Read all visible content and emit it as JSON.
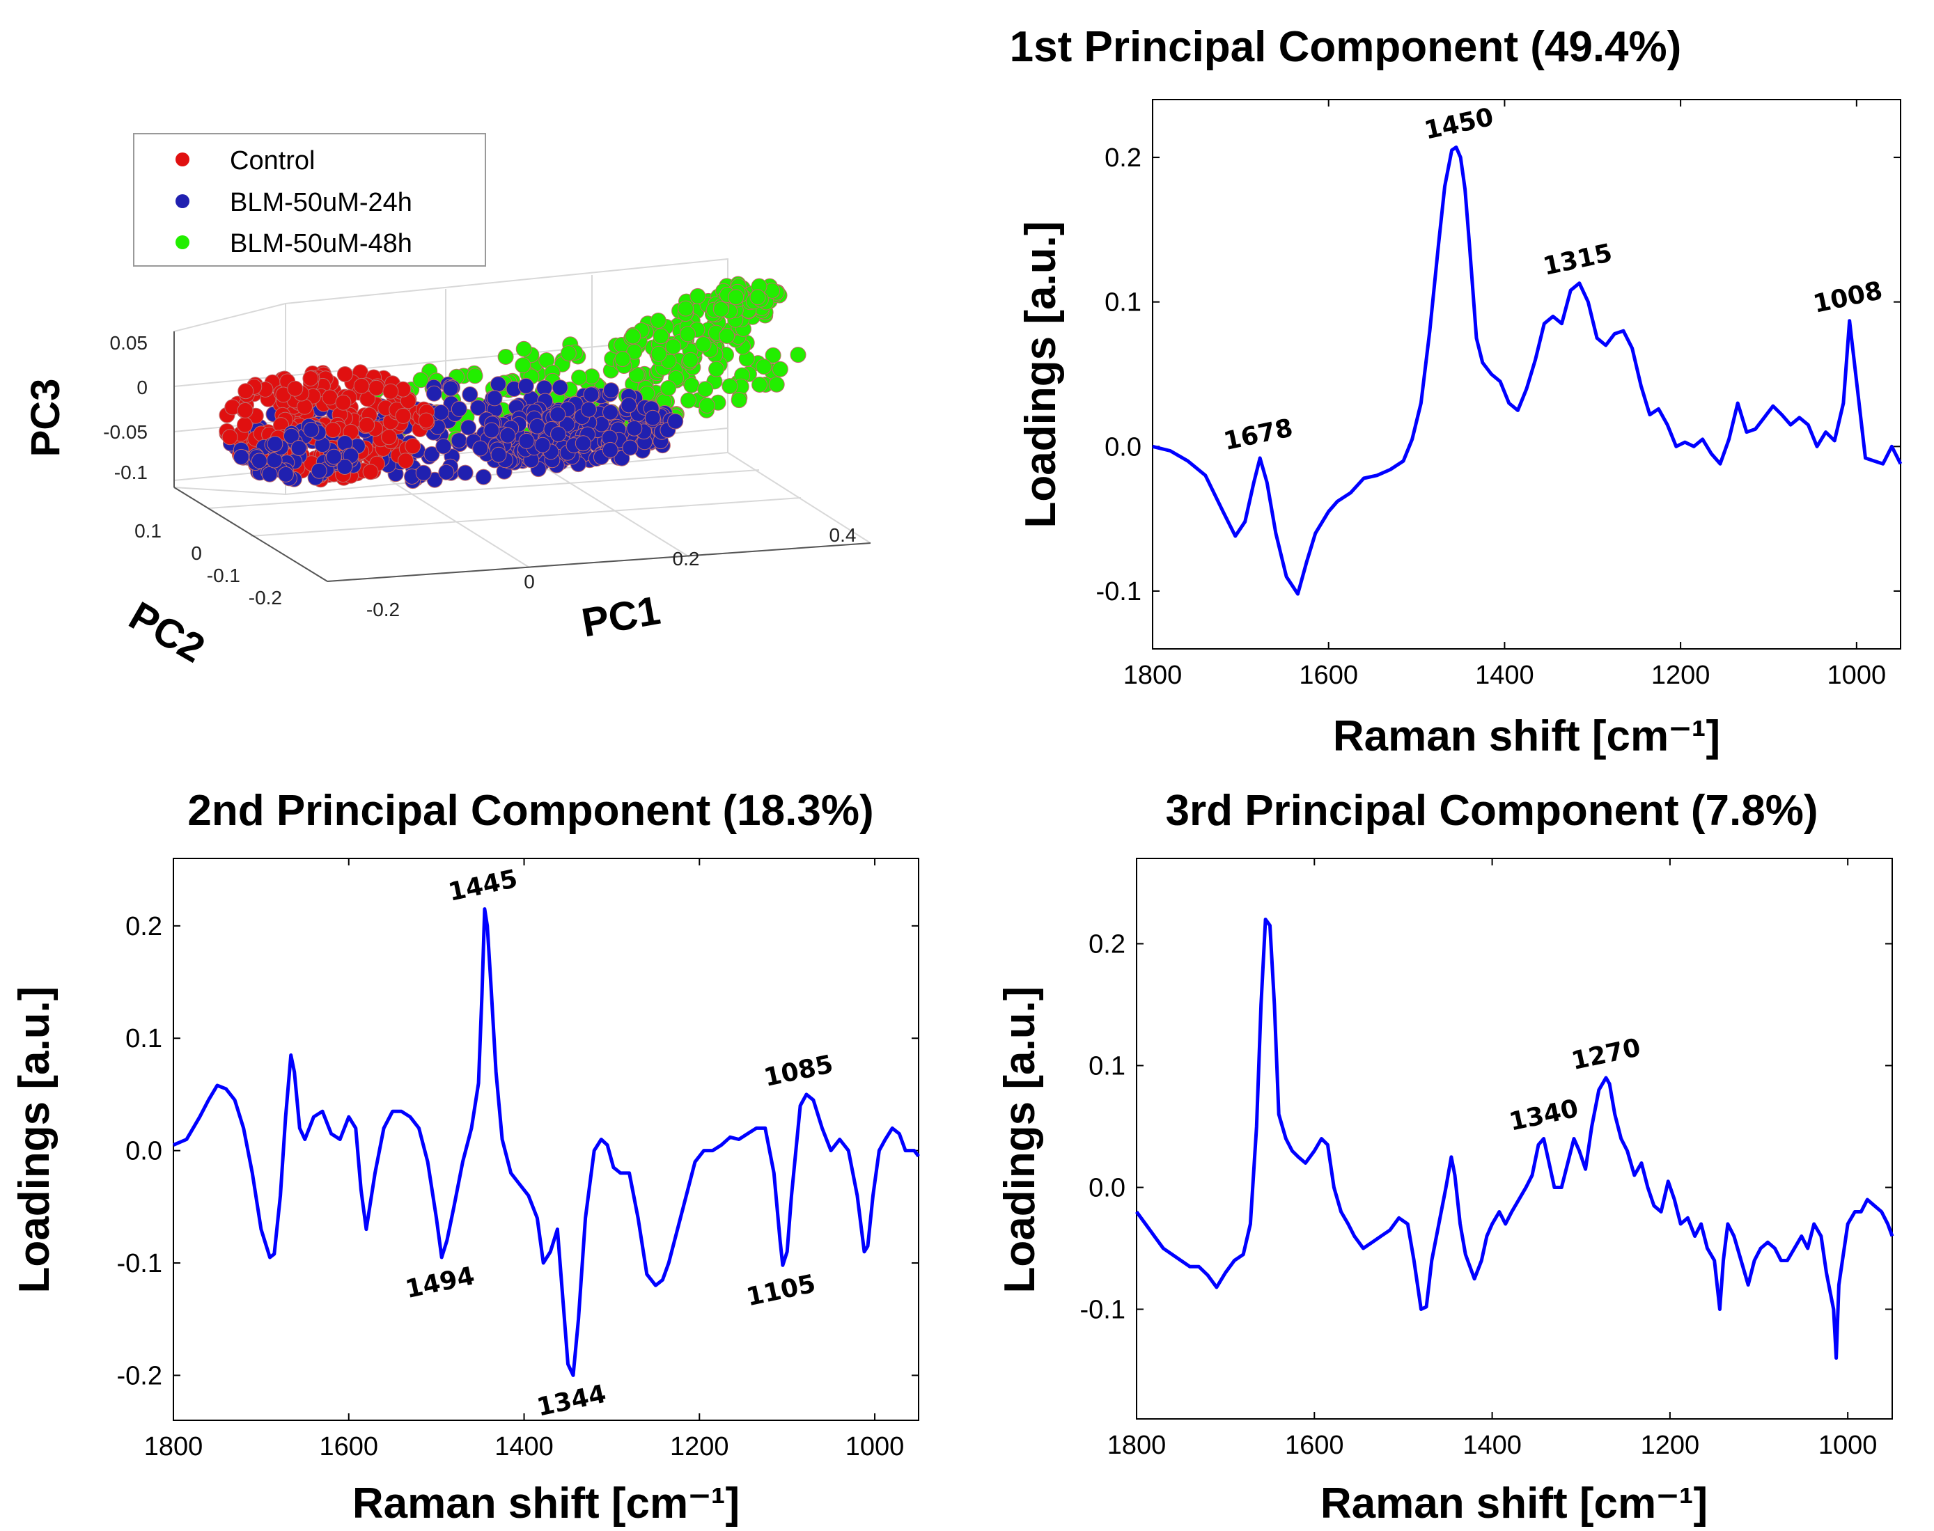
{
  "colors": {
    "line": "#0000ff",
    "control": "#e01010",
    "blm24": "#2020b0",
    "blm48": "#22ee00"
  },
  "chart_data": [
    {
      "id": "scatter3d",
      "type": "scatter",
      "legend": [
        "Control",
        "BLM-50uM-24h",
        "BLM-50uM-48h"
      ],
      "legend_position": "top-left",
      "xlabel": "PC1",
      "ylabel": "PC2",
      "zlabel": "PC3",
      "x_ticks": [
        "-0.2",
        "0",
        "0.2",
        "0.4"
      ],
      "y_ticks": [
        "0.1",
        "0",
        "-0.1",
        "-0.2"
      ],
      "z_ticks": [
        "0.05",
        "0",
        "-0.05",
        "-0.1"
      ],
      "groups": [
        {
          "name": "Control",
          "pc1_range": [
            -0.25,
            0.05
          ],
          "pc2_range": [
            -0.1,
            0.1
          ],
          "pc3_range": [
            -0.12,
            0.05
          ]
        },
        {
          "name": "BLM-50uM-24h",
          "pc1_range": [
            -0.25,
            0.3
          ],
          "pc2_range": [
            -0.1,
            0.1
          ],
          "pc3_range": [
            -0.12,
            0.02
          ]
        },
        {
          "name": "BLM-50uM-48h",
          "pc1_range": [
            0.0,
            0.5
          ],
          "pc2_range": [
            -0.05,
            0.1
          ],
          "pc3_range": [
            -0.02,
            0.06
          ]
        }
      ]
    },
    {
      "id": "pc1",
      "type": "line",
      "title": "1st Principal Component  (49.4%)",
      "xlabel": "Raman shift  [cm⁻¹]",
      "ylabel": "Loadings [a.u.]",
      "xlim": [
        1800,
        950
      ],
      "ylim": [
        -0.14,
        0.24
      ],
      "x_ticks": [
        1800,
        1600,
        1400,
        1200,
        1000
      ],
      "x_tick_labels": [
        "1800",
        "1600",
        "1400",
        "1200",
        "1000"
      ],
      "y_ticks": [
        -0.1,
        0.0,
        0.1,
        0.2
      ],
      "y_tick_labels": [
        "-0.1",
        "0.0",
        "0.1",
        "0.2"
      ],
      "x": [
        1800,
        1780,
        1760,
        1740,
        1720,
        1706,
        1695,
        1685,
        1678,
        1670,
        1660,
        1648,
        1635,
        1625,
        1615,
        1600,
        1590,
        1575,
        1560,
        1545,
        1530,
        1515,
        1505,
        1495,
        1485,
        1475,
        1468,
        1460,
        1455,
        1450,
        1445,
        1440,
        1432,
        1425,
        1415,
        1405,
        1395,
        1385,
        1375,
        1365,
        1355,
        1345,
        1335,
        1325,
        1315,
        1305,
        1295,
        1285,
        1275,
        1265,
        1255,
        1245,
        1235,
        1225,
        1215,
        1205,
        1195,
        1185,
        1175,
        1165,
        1155,
        1145,
        1135,
        1125,
        1115,
        1105,
        1095,
        1085,
        1075,
        1065,
        1055,
        1045,
        1035,
        1025,
        1015,
        1008,
        1000,
        990,
        980,
        970,
        960,
        950
      ],
      "y": [
        0.0,
        -0.003,
        -0.01,
        -0.02,
        -0.045,
        -0.062,
        -0.052,
        -0.025,
        -0.008,
        -0.025,
        -0.06,
        -0.09,
        -0.102,
        -0.08,
        -0.06,
        -0.045,
        -0.038,
        -0.032,
        -0.022,
        -0.02,
        -0.016,
        -0.01,
        0.005,
        0.03,
        0.08,
        0.14,
        0.18,
        0.205,
        0.207,
        0.2,
        0.178,
        0.14,
        0.075,
        0.058,
        0.05,
        0.045,
        0.03,
        0.025,
        0.04,
        0.06,
        0.085,
        0.09,
        0.085,
        0.108,
        0.113,
        0.1,
        0.075,
        0.07,
        0.078,
        0.08,
        0.068,
        0.042,
        0.022,
        0.026,
        0.015,
        0.0,
        0.003,
        0.0,
        0.005,
        -0.005,
        -0.012,
        0.005,
        0.03,
        0.01,
        0.012,
        0.02,
        0.028,
        0.022,
        0.015,
        0.02,
        0.015,
        0.0,
        0.01,
        0.004,
        0.03,
        0.087,
        0.045,
        -0.008,
        -0.01,
        -0.012,
        0.0,
        -0.012
      ],
      "annotations": [
        {
          "text": "1678",
          "x": 1678,
          "y": -0.008
        },
        {
          "text": "1450",
          "x": 1450,
          "y": 0.207
        },
        {
          "text": "1315",
          "x": 1315,
          "y": 0.113
        },
        {
          "text": "1008",
          "x": 1008,
          "y": 0.087
        }
      ]
    },
    {
      "id": "pc2",
      "type": "line",
      "title": "2nd Principal Component  (18.3%)",
      "xlabel": "Raman shift  [cm⁻¹]",
      "ylabel": "Loadings [a.u.]",
      "xlim": [
        1800,
        950
      ],
      "ylim": [
        -0.24,
        0.26
      ],
      "x_ticks": [
        1800,
        1600,
        1400,
        1200,
        1000
      ],
      "x_tick_labels": [
        "1800",
        "1600",
        "1400",
        "1200",
        "1000"
      ],
      "y_ticks": [
        -0.2,
        -0.1,
        0.0,
        0.1,
        0.2
      ],
      "y_tick_labels": [
        "-0.2",
        "-0.1",
        "0.0",
        "0.1",
        "0.2"
      ],
      "x": [
        1800,
        1785,
        1770,
        1760,
        1750,
        1740,
        1730,
        1720,
        1710,
        1700,
        1690,
        1685,
        1678,
        1672,
        1666,
        1662,
        1656,
        1650,
        1640,
        1630,
        1620,
        1610,
        1600,
        1592,
        1586,
        1580,
        1570,
        1560,
        1550,
        1540,
        1530,
        1520,
        1510,
        1500,
        1494,
        1488,
        1480,
        1470,
        1460,
        1452,
        1448,
        1445,
        1442,
        1438,
        1432,
        1425,
        1415,
        1405,
        1395,
        1385,
        1378,
        1370,
        1362,
        1355,
        1350,
        1344,
        1338,
        1330,
        1320,
        1312,
        1305,
        1298,
        1290,
        1280,
        1270,
        1260,
        1250,
        1242,
        1235,
        1225,
        1215,
        1205,
        1195,
        1185,
        1175,
        1165,
        1155,
        1145,
        1135,
        1125,
        1115,
        1108,
        1105,
        1100,
        1095,
        1090,
        1085,
        1078,
        1070,
        1060,
        1050,
        1040,
        1030,
        1020,
        1012,
        1008,
        1002,
        995,
        988,
        980,
        972,
        965,
        955,
        950
      ],
      "y": [
        0.005,
        0.01,
        0.03,
        0.045,
        0.058,
        0.055,
        0.045,
        0.02,
        -0.02,
        -0.07,
        -0.095,
        -0.092,
        -0.04,
        0.03,
        0.085,
        0.07,
        0.02,
        0.01,
        0.03,
        0.035,
        0.015,
        0.01,
        0.03,
        0.02,
        -0.035,
        -0.07,
        -0.02,
        0.02,
        0.035,
        0.035,
        0.03,
        0.02,
        -0.01,
        -0.06,
        -0.095,
        -0.08,
        -0.05,
        -0.01,
        0.02,
        0.06,
        0.14,
        0.215,
        0.2,
        0.15,
        0.07,
        0.01,
        -0.02,
        -0.03,
        -0.04,
        -0.06,
        -0.1,
        -0.09,
        -0.07,
        -0.14,
        -0.19,
        -0.2,
        -0.15,
        -0.06,
        0.0,
        0.01,
        0.005,
        -0.015,
        -0.02,
        -0.02,
        -0.06,
        -0.11,
        -0.12,
        -0.115,
        -0.1,
        -0.07,
        -0.04,
        -0.01,
        0.0,
        0.0,
        0.005,
        0.012,
        0.01,
        0.015,
        0.02,
        0.02,
        -0.02,
        -0.08,
        -0.102,
        -0.09,
        -0.04,
        0.0,
        0.04,
        0.05,
        0.045,
        0.02,
        0.0,
        0.01,
        0.0,
        -0.04,
        -0.09,
        -0.085,
        -0.04,
        0.0,
        0.01,
        0.02,
        0.015,
        0.0,
        0.0,
        -0.005
      ],
      "annotations": [
        {
          "text": "1445",
          "x": 1445,
          "y": 0.215
        },
        {
          "text": "1494",
          "x": 1494,
          "y": -0.095
        },
        {
          "text": "1344",
          "x": 1344,
          "y": -0.2
        },
        {
          "text": "1105",
          "x": 1105,
          "y": -0.102
        },
        {
          "text": "1085",
          "x": 1085,
          "y": 0.05
        }
      ]
    },
    {
      "id": "pc3",
      "type": "line",
      "title": "3rd Principal Component  (7.8%)",
      "xlabel": "Raman shift  [cm⁻¹]",
      "ylabel": "Loadings [a.u.]",
      "xlim": [
        1800,
        950
      ],
      "ylim": [
        -0.19,
        0.27
      ],
      "x_ticks": [
        1800,
        1600,
        1400,
        1200,
        1000
      ],
      "x_tick_labels": [
        "1800",
        "1600",
        "1400",
        "1200",
        "1000"
      ],
      "y_ticks": [
        -0.1,
        0.0,
        0.1,
        0.2
      ],
      "y_tick_labels": [
        "-0.1",
        "0.0",
        "0.1",
        "0.2"
      ],
      "x": [
        1800,
        1790,
        1780,
        1770,
        1760,
        1750,
        1740,
        1730,
        1720,
        1710,
        1700,
        1690,
        1680,
        1672,
        1665,
        1660,
        1655,
        1650,
        1645,
        1640,
        1632,
        1625,
        1618,
        1610,
        1600,
        1592,
        1585,
        1578,
        1570,
        1562,
        1555,
        1545,
        1535,
        1525,
        1515,
        1505,
        1495,
        1488,
        1480,
        1474,
        1468,
        1460,
        1452,
        1446,
        1442,
        1436,
        1430,
        1420,
        1412,
        1406,
        1400,
        1392,
        1385,
        1378,
        1370,
        1362,
        1355,
        1348,
        1342,
        1336,
        1330,
        1322,
        1315,
        1308,
        1302,
        1295,
        1288,
        1280,
        1272,
        1268,
        1262,
        1255,
        1248,
        1240,
        1232,
        1225,
        1218,
        1210,
        1202,
        1195,
        1188,
        1180,
        1172,
        1165,
        1158,
        1150,
        1144,
        1140,
        1135,
        1128,
        1120,
        1112,
        1105,
        1098,
        1090,
        1082,
        1075,
        1068,
        1060,
        1052,
        1045,
        1038,
        1030,
        1024,
        1020,
        1016,
        1013,
        1010,
        1006,
        1000,
        992,
        985,
        978,
        970,
        962,
        955,
        950
      ],
      "y": [
        -0.02,
        -0.03,
        -0.04,
        -0.05,
        -0.055,
        -0.06,
        -0.065,
        -0.065,
        -0.072,
        -0.082,
        -0.07,
        -0.06,
        -0.055,
        -0.03,
        0.05,
        0.15,
        0.22,
        0.215,
        0.15,
        0.06,
        0.04,
        0.03,
        0.025,
        0.02,
        0.03,
        0.04,
        0.035,
        0.0,
        -0.02,
        -0.03,
        -0.04,
        -0.05,
        -0.045,
        -0.04,
        -0.035,
        -0.025,
        -0.03,
        -0.06,
        -0.1,
        -0.098,
        -0.06,
        -0.03,
        0.0,
        0.025,
        0.01,
        -0.03,
        -0.055,
        -0.075,
        -0.06,
        -0.04,
        -0.03,
        -0.02,
        -0.03,
        -0.02,
        -0.01,
        0.0,
        0.01,
        0.035,
        0.04,
        0.02,
        0.0,
        0.0,
        0.02,
        0.04,
        0.03,
        0.015,
        0.05,
        0.08,
        0.09,
        0.085,
        0.06,
        0.04,
        0.03,
        0.01,
        0.02,
        0.0,
        -0.015,
        -0.02,
        0.005,
        -0.01,
        -0.03,
        -0.025,
        -0.04,
        -0.03,
        -0.05,
        -0.06,
        -0.1,
        -0.06,
        -0.03,
        -0.04,
        -0.06,
        -0.08,
        -0.06,
        -0.05,
        -0.045,
        -0.05,
        -0.06,
        -0.06,
        -0.05,
        -0.04,
        -0.05,
        -0.03,
        -0.04,
        -0.07,
        -0.085,
        -0.1,
        -0.14,
        -0.08,
        -0.06,
        -0.03,
        -0.02,
        -0.02,
        -0.01,
        -0.015,
        -0.02,
        -0.03,
        -0.04
      ],
      "annotations": [
        {
          "text": "1340",
          "x": 1340,
          "y": 0.04
        },
        {
          "text": "1270",
          "x": 1270,
          "y": 0.09
        }
      ]
    }
  ]
}
